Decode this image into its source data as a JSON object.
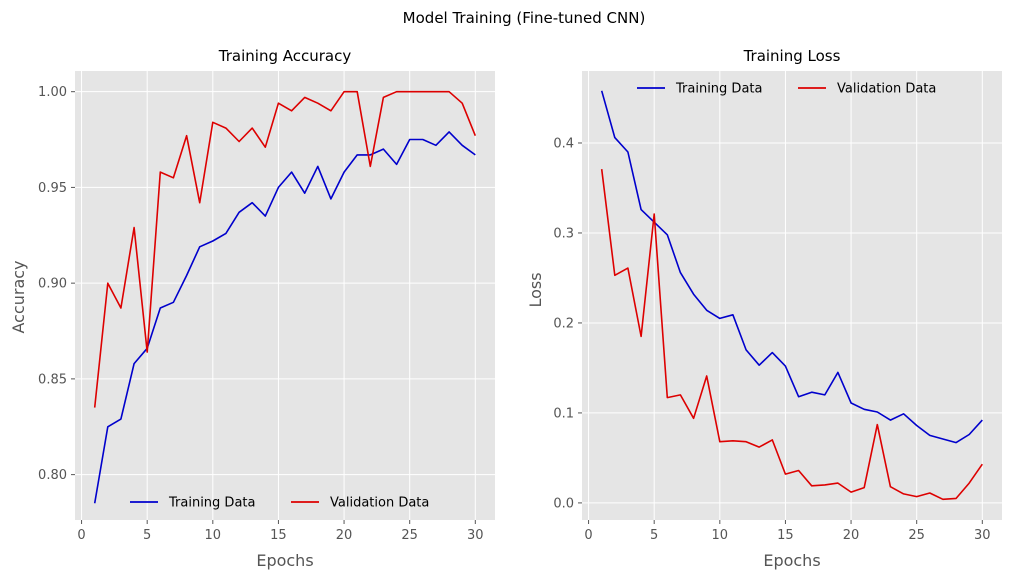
{
  "figure": {
    "suptitle": "Model Training (Fine-tuned CNN)"
  },
  "colors": {
    "training": "#0000cc",
    "validation": "#dd0000",
    "panel_bg": "#e5e5e5",
    "grid": "#ffffff"
  },
  "chart_data": [
    {
      "type": "line",
      "title": "Training Accuracy",
      "xlabel": "Epochs",
      "ylabel": "Accuracy",
      "xlim": [
        -0.5,
        31.5
      ],
      "ylim": [
        0.7763,
        1.0108
      ],
      "xticks": [
        0,
        5,
        10,
        15,
        20,
        25,
        30
      ],
      "yticks": [
        0.8,
        0.85,
        0.9,
        0.95,
        1.0
      ],
      "ytick_labels": [
        "0.80",
        "0.85",
        "0.90",
        "0.95",
        "1.00"
      ],
      "grid": true,
      "legend_position": "lower center",
      "x": [
        1,
        2,
        3,
        4,
        5,
        6,
        7,
        8,
        9,
        10,
        11,
        12,
        13,
        14,
        15,
        16,
        17,
        18,
        19,
        20,
        21,
        22,
        23,
        24,
        25,
        26,
        27,
        28,
        29,
        30
      ],
      "series": [
        {
          "name": "Training Data",
          "color": "#0000cc",
          "values": [
            0.785,
            0.825,
            0.829,
            0.858,
            0.866,
            0.887,
            0.89,
            0.904,
            0.919,
            0.922,
            0.926,
            0.937,
            0.942,
            0.935,
            0.95,
            0.958,
            0.947,
            0.961,
            0.944,
            0.958,
            0.967,
            0.967,
            0.97,
            0.962,
            0.975,
            0.975,
            0.972,
            0.979,
            0.972,
            0.967
          ]
        },
        {
          "name": "Validation Data",
          "color": "#dd0000",
          "values": [
            0.835,
            0.9,
            0.887,
            0.929,
            0.864,
            0.958,
            0.955,
            0.977,
            0.942,
            0.984,
            0.981,
            0.974,
            0.981,
            0.971,
            0.994,
            0.99,
            0.997,
            0.994,
            0.99,
            1.0,
            1.0,
            0.961,
            0.997,
            1.0,
            1.0,
            1.0,
            1.0,
            1.0,
            0.994,
            0.977
          ]
        }
      ]
    },
    {
      "type": "line",
      "title": "Training Loss",
      "xlabel": "Epochs",
      "ylabel": "Loss",
      "xlim": [
        -0.5,
        31.5
      ],
      "ylim": [
        -0.019,
        0.48
      ],
      "xticks": [
        0,
        5,
        10,
        15,
        20,
        25,
        30
      ],
      "yticks": [
        0.0,
        0.1,
        0.2,
        0.3,
        0.4
      ],
      "ytick_labels": [
        "0.0",
        "0.1",
        "0.2",
        "0.3",
        "0.4"
      ],
      "grid": true,
      "legend_position": "upper center",
      "x": [
        1,
        2,
        3,
        4,
        5,
        6,
        7,
        8,
        9,
        10,
        11,
        12,
        13,
        14,
        15,
        16,
        17,
        18,
        19,
        20,
        21,
        22,
        23,
        24,
        25,
        26,
        27,
        28,
        29,
        30
      ],
      "series": [
        {
          "name": "Training Data",
          "color": "#0000cc",
          "values": [
            0.458,
            0.406,
            0.39,
            0.326,
            0.312,
            0.298,
            0.256,
            0.232,
            0.214,
            0.205,
            0.209,
            0.17,
            0.153,
            0.167,
            0.152,
            0.118,
            0.123,
            0.12,
            0.145,
            0.111,
            0.104,
            0.101,
            0.092,
            0.099,
            0.086,
            0.075,
            0.071,
            0.067,
            0.076,
            0.092
          ]
        },
        {
          "name": "Validation Data",
          "color": "#dd0000",
          "values": [
            0.371,
            0.253,
            0.261,
            0.185,
            0.321,
            0.117,
            0.12,
            0.094,
            0.141,
            0.068,
            0.069,
            0.068,
            0.062,
            0.07,
            0.032,
            0.036,
            0.019,
            0.02,
            0.022,
            0.012,
            0.017,
            0.087,
            0.018,
            0.01,
            0.007,
            0.011,
            0.004,
            0.005,
            0.022,
            0.043
          ]
        }
      ]
    }
  ]
}
